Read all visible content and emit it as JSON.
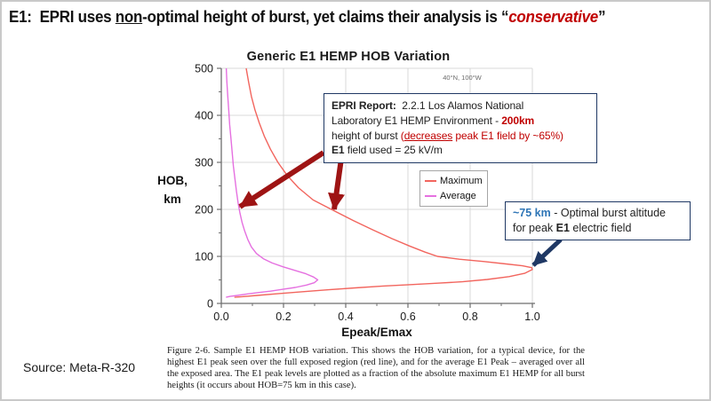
{
  "colors": {
    "red": "#c00000",
    "darkred_arrow": "#9e1414",
    "navy": "#1f3864",
    "blue": "#2e75b6",
    "max_line": "#f2655e",
    "avg_line": "#e570e0",
    "grid": "#d8d8d8",
    "axis": "#6e6e6e",
    "text": "#1a1a1a"
  },
  "title_segments": [
    {
      "t": "E1:  EPRI uses "
    },
    {
      "t": "non",
      "u": true
    },
    {
      "t": "-optimal height of burst, yet claims their analysis is “"
    },
    {
      "t": "conservative",
      "c": "red",
      "i": true
    },
    {
      "t": "”"
    }
  ],
  "source_label": "Source: Meta-R-320",
  "chart_data": {
    "type": "line",
    "title": "Generic E1 HEMP HOB Variation",
    "corner_annotation": "40°N, 100°W",
    "xlabel": "Epeak/Emax",
    "ylabel": [
      "HOB,",
      "km"
    ],
    "xlim": [
      0,
      1.0
    ],
    "ylim": [
      0,
      500
    ],
    "grid": true,
    "xticks": {
      "values": [
        0,
        0.2,
        0.4,
        0.6,
        0.8,
        1.0
      ],
      "labels": [
        "0.0",
        "0.2",
        "0.4",
        "0.6",
        "0.8",
        "1.0"
      ],
      "minor": [
        0.1,
        0.3,
        0.5,
        0.7,
        0.9
      ]
    },
    "yticks": {
      "values": [
        0,
        100,
        200,
        300,
        400,
        500
      ],
      "labels": [
        "0",
        "100",
        "200",
        "300",
        "400",
        "500"
      ],
      "minor": [
        50,
        150,
        250,
        350,
        450
      ]
    },
    "legend": {
      "position": "inside top-right",
      "entries": [
        {
          "label": "Maximum",
          "color_key": "max_line"
        },
        {
          "label": "Average",
          "color_key": "avg_line"
        }
      ]
    },
    "series": [
      {
        "name": "Maximum",
        "color_key": "max_line",
        "points": [
          [
            0.08,
            500
          ],
          [
            0.088,
            470
          ],
          [
            0.097,
            440
          ],
          [
            0.108,
            412
          ],
          [
            0.122,
            384
          ],
          [
            0.138,
            356
          ],
          [
            0.158,
            328
          ],
          [
            0.182,
            300
          ],
          [
            0.212,
            272
          ],
          [
            0.248,
            246
          ],
          [
            0.295,
            220
          ],
          [
            0.36,
            198
          ],
          [
            0.425,
            176
          ],
          [
            0.488,
            156
          ],
          [
            0.548,
            138
          ],
          [
            0.605,
            122
          ],
          [
            0.655,
            109
          ],
          [
            0.695,
            100
          ],
          [
            0.765,
            94
          ],
          [
            0.845,
            89
          ],
          [
            0.915,
            84
          ],
          [
            0.968,
            80
          ],
          [
            0.998,
            76
          ],
          [
            1.0,
            72
          ],
          [
            0.975,
            64
          ],
          [
            0.925,
            57
          ],
          [
            0.855,
            51
          ],
          [
            0.775,
            46
          ],
          [
            0.695,
            43
          ],
          [
            0.61,
            40
          ],
          [
            0.52,
            37
          ],
          [
            0.43,
            33
          ],
          [
            0.345,
            29
          ],
          [
            0.262,
            25
          ],
          [
            0.185,
            21
          ],
          [
            0.115,
            17
          ],
          [
            0.062,
            14
          ],
          [
            0.042,
            13
          ]
        ]
      },
      {
        "name": "Average",
        "color_key": "avg_line",
        "points": [
          [
            0.016,
            500
          ],
          [
            0.018,
            470
          ],
          [
            0.021,
            440
          ],
          [
            0.024,
            410
          ],
          [
            0.027,
            380
          ],
          [
            0.031,
            350
          ],
          [
            0.035,
            320
          ],
          [
            0.039,
            292
          ],
          [
            0.044,
            264
          ],
          [
            0.049,
            238
          ],
          [
            0.054,
            214
          ],
          [
            0.06,
            192
          ],
          [
            0.067,
            172
          ],
          [
            0.075,
            154
          ],
          [
            0.085,
            136
          ],
          [
            0.097,
            120
          ],
          [
            0.113,
            106
          ],
          [
            0.135,
            95
          ],
          [
            0.163,
            86
          ],
          [
            0.198,
            78
          ],
          [
            0.238,
            70
          ],
          [
            0.272,
            63
          ],
          [
            0.297,
            56
          ],
          [
            0.31,
            50
          ],
          [
            0.299,
            44
          ],
          [
            0.274,
            39
          ],
          [
            0.238,
            34
          ],
          [
            0.198,
            30
          ],
          [
            0.158,
            26
          ],
          [
            0.118,
            23
          ],
          [
            0.082,
            20
          ],
          [
            0.052,
            17
          ],
          [
            0.028,
            15
          ],
          [
            0.015,
            13
          ]
        ]
      }
    ]
  },
  "annotations": {
    "epri_box": {
      "lines": [
        [
          {
            "t": "EPRI Report:",
            "b": true
          },
          {
            "t": "  2.2.1 Los Alamos National"
          }
        ],
        [
          {
            "t": "Laboratory E1 HEMP Environment - "
          },
          {
            "t": "200km",
            "b": true,
            "c": "red"
          }
        ],
        [
          {
            "t": "height of burst "
          },
          {
            "t": "(",
            "c": "red"
          },
          {
            "t": "decreases",
            "c": "red",
            "u": true
          },
          {
            "t": " peak E1 field by ~65%)",
            "c": "red"
          }
        ],
        [
          {
            "t": "E1",
            "b": true
          },
          {
            "t": " field used = 25 kV/m"
          }
        ]
      ]
    },
    "optimal_box": {
      "lines": [
        [
          {
            "t": "~75 km",
            "b": true,
            "c": "blue"
          },
          {
            "t": " - Optimal burst altitude"
          }
        ],
        [
          {
            "t": "for peak "
          },
          {
            "t": "E1",
            "b": true
          },
          {
            "t": " electric field"
          }
        ]
      ]
    },
    "arrows": [
      {
        "name": "arrow-to-average-curve-200km",
        "color_key": "darkred_arrow",
        "from": [
          362,
          170
        ],
        "to": [
          268,
          231
        ],
        "width": 6
      },
      {
        "name": "arrow-to-maximum-curve-200km",
        "color_key": "darkred_arrow",
        "from": [
          382,
          177
        ],
        "to": [
          374,
          234
        ],
        "width": 6
      },
      {
        "name": "arrow-to-peak-75km",
        "color_key": "navy",
        "from": [
          629,
          268
        ],
        "to": [
          598,
          297
        ],
        "width": 5
      }
    ]
  },
  "caption": "Figure 2-6. Sample E1 HEMP HOB variation.  This shows the HOB variation, for a typical device, for the highest E1 peak seen over the full exposed region (red line), and for the average E1 Peak – averaged over all the exposed area.  The E1 peak levels are plotted as a fraction of the absolute maximum E1 HEMP for all burst heights (it occurs about HOB=75 km in this case)."
}
